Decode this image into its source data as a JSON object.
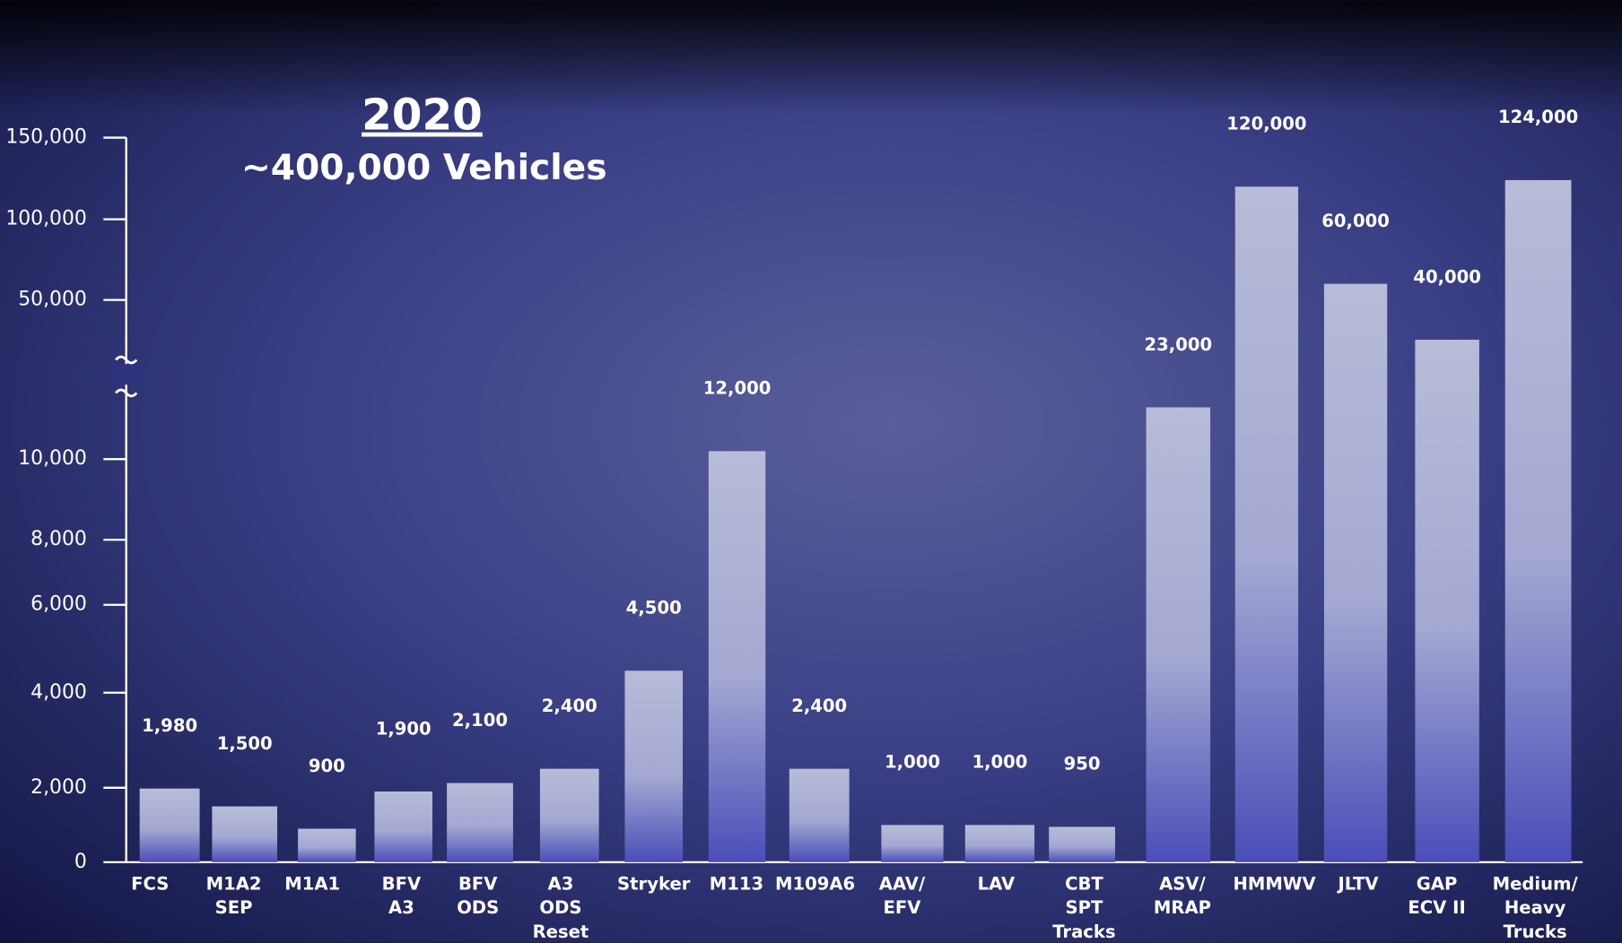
{
  "chart_data": {
    "type": "bar",
    "title": "2020",
    "subtitle": "~400,000 Vehicles",
    "categories": [
      [
        "FCS"
      ],
      [
        "M1A2",
        "SEP"
      ],
      [
        "M1A1"
      ],
      [
        "BFV",
        "A3"
      ],
      [
        "BFV",
        "ODS"
      ],
      [
        "A3",
        "ODS",
        "Reset"
      ],
      [
        "Stryker"
      ],
      [
        "M113"
      ],
      [
        "M109A6"
      ],
      [
        "AAV/",
        "EFV"
      ],
      [
        "LAV"
      ],
      [
        "CBT",
        "SPT",
        "Tracks"
      ],
      [
        "ASV/",
        "MRAP"
      ],
      [
        "HMMWV"
      ],
      [
        "JLTV"
      ],
      [
        "GAP",
        "ECV II"
      ],
      [
        "Medium/",
        "Heavy",
        "Trucks"
      ]
    ],
    "values": [
      1980,
      1500,
      900,
      1900,
      2100,
      2400,
      4500,
      12000,
      2400,
      1000,
      1000,
      950,
      23000,
      120000,
      60000,
      40000,
      124000
    ],
    "value_labels": [
      "1,980",
      "1,500",
      "900",
      "1,900",
      "2,100",
      "2,400",
      "4,500",
      "12,000",
      "2,400",
      "1,000",
      "1,000",
      "950",
      "23,000",
      "120,000",
      "60,000",
      "40,000",
      "124,000"
    ],
    "ylim": [
      0,
      150000
    ],
    "yticks": [
      0,
      {
        "value": 2000,
        "label": "2,000"
      },
      {
        "value": 4000,
        "label": "4,000"
      },
      {
        "value": 6000,
        "label": "6,000"
      },
      {
        "value": 8000,
        "label": "8,000"
      },
      {
        "value": 10000,
        "label": "10,000"
      },
      {
        "value": 50000,
        "label": "50,000"
      },
      {
        "value": 100000,
        "label": "100,000"
      },
      {
        "value": 150000,
        "label": "150,000"
      }
    ],
    "axis_break": true
  }
}
